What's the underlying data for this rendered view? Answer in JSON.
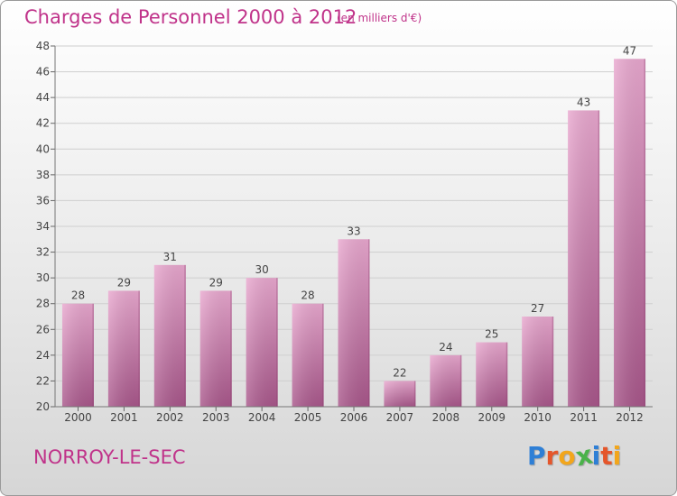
{
  "header": {
    "title": "Charges de Personnel 2000 à 2012",
    "unit_note": "(en milliers d'€)"
  },
  "footer": {
    "commune": "NORROY-LE-SEC",
    "logo_letters": [
      "P",
      "r",
      "o",
      "x",
      "i",
      "t",
      "i"
    ],
    "logo_colors": [
      "#2e7fd6",
      "#e5562b",
      "#f2a61c",
      "#4ab24a",
      "#2e7fd6",
      "#e5562b",
      "#f2a61c"
    ]
  },
  "colors": {
    "accent": "#c0338a",
    "bar_top": "#e9a8cf",
    "bar_bottom": "#a8568a"
  },
  "chart_data": {
    "type": "bar",
    "title": "Charges de Personnel 2000 à 2012",
    "categories": [
      "2000",
      "2001",
      "2002",
      "2003",
      "2004",
      "2005",
      "2006",
      "2007",
      "2008",
      "2009",
      "2010",
      "2011",
      "2012"
    ],
    "values": [
      28,
      29,
      31,
      29,
      30,
      28,
      33,
      22,
      24,
      25,
      27,
      43,
      47
    ],
    "ylim": [
      20,
      48
    ],
    "yticks": [
      20,
      22,
      24,
      26,
      28,
      30,
      32,
      34,
      36,
      38,
      40,
      42,
      44,
      46,
      48
    ],
    "grid": true,
    "data_labels": true
  }
}
